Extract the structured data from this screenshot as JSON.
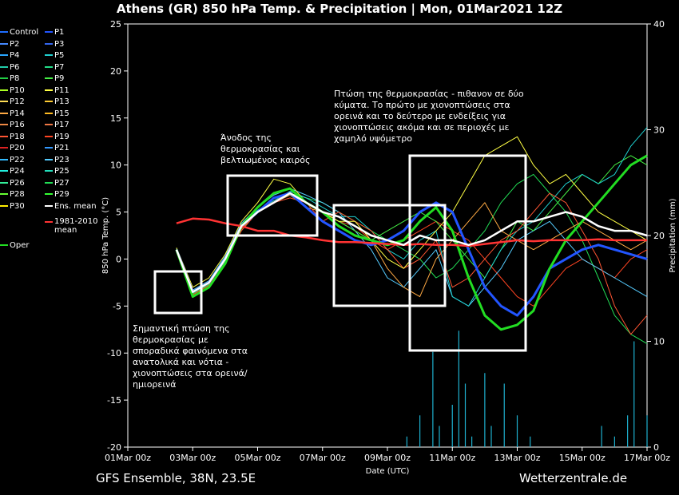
{
  "title": "Athens  (GR)  850 hPa Temp. & Precipitation | Mon, 01Mar2021 12Z",
  "footer": {
    "model": "GFS Ensemble, 38N, 23.5E",
    "source": "Wetterzentrale.de"
  },
  "annotations": [
    "Σημαντική πτώση της θερμοκρασίας με σποραδικά φαινόμενα στα ανατολικά και νότια - χιονοπτώσεις στα ορεινά/ημιορεινά",
    "Άνοδος της θερμοκρασίας και βελτιωμένος καιρός",
    "Πτώση της θερμοκρασίας - πιθανον σε δύο κύματα. Το πρώτο με χιονοπτώσεις στα ορεινά και το δεύτερο με ενδείξεις για χιονοπτώσεις ακόμα και σε περιοχές με χαμηλό υψόμετρο"
  ],
  "legend": [
    {
      "label": "Control",
      "color": "#1e6eff"
    },
    {
      "label": "P1",
      "color": "#2255ff"
    },
    {
      "label": "P2",
      "color": "#4488ff"
    },
    {
      "label": "P3",
      "color": "#3366ee"
    },
    {
      "label": "P4",
      "color": "#2aa6ff"
    },
    {
      "label": "P5",
      "color": "#1fd0d0"
    },
    {
      "label": "P6",
      "color": "#22ccaa"
    },
    {
      "label": "P7",
      "color": "#22dd88"
    },
    {
      "label": "P8",
      "color": "#22cc44"
    },
    {
      "label": "P9",
      "color": "#44ee44"
    },
    {
      "label": "P10",
      "color": "#aaff22"
    },
    {
      "label": "P11",
      "color": "#ffff44"
    },
    {
      "label": "P12",
      "color": "#ffdd55"
    },
    {
      "label": "P13",
      "color": "#ffcc33"
    },
    {
      "label": "P14",
      "color": "#ffaa44"
    },
    {
      "label": "P15",
      "color": "#ffbb22"
    },
    {
      "label": "P16",
      "color": "#ee8844"
    },
    {
      "label": "P17",
      "color": "#ee7744"
    },
    {
      "label": "P18",
      "color": "#ff5533"
    },
    {
      "label": "P19",
      "color": "#ff4422"
    },
    {
      "label": "P20",
      "color": "#dd2222"
    },
    {
      "label": "P21",
      "color": "#3399ff"
    },
    {
      "label": "P22",
      "color": "#33bbff"
    },
    {
      "label": "P23",
      "color": "#55ccff"
    },
    {
      "label": "P24",
      "color": "#22eedd"
    },
    {
      "label": "P25",
      "color": "#22ddbb"
    },
    {
      "label": "P26",
      "color": "#33ee99"
    },
    {
      "label": "P27",
      "color": "#22dd55"
    },
    {
      "label": "P28",
      "color": "#66ff33"
    },
    {
      "label": "P29",
      "color": "#33ff33"
    },
    {
      "label": "P30",
      "color": "#ffee00"
    },
    {
      "label": "Ens. mean",
      "color": "#ffffff"
    },
    {
      "label": "1981-2010 mean",
      "color": "#ff3333"
    },
    {
      "label": "Oper",
      "color": "#22dd22"
    }
  ],
  "chart_data": {
    "type": "line",
    "xlabel": "Date (UTC)",
    "ylabel": "850 hPa Temp. (°C)",
    "y2label": "Precipitation (mm)",
    "ylim": [
      -20,
      25
    ],
    "y2lim": [
      0,
      40
    ],
    "yticks": [
      -20,
      -15,
      -10,
      -5,
      0,
      5,
      10,
      15,
      20,
      25
    ],
    "y2ticks": [
      0,
      10,
      20,
      30,
      40
    ],
    "xlim": [
      0,
      16
    ],
    "xticks": [
      0,
      2,
      4,
      6,
      8,
      10,
      12,
      14,
      16
    ],
    "xticklabels": [
      "01Mar 00z",
      "03Mar 00z",
      "05Mar 00z",
      "07Mar 00z",
      "09Mar 00z",
      "11Mar 00z",
      "13Mar 00z",
      "15Mar 00z",
      "17Mar 00z"
    ],
    "grid": false,
    "series": [
      {
        "name": "Ens. mean",
        "color": "#ffffff",
        "x": [
          1.5,
          2,
          2.5,
          3,
          3.5,
          4,
          4.5,
          5,
          5.5,
          6,
          6.5,
          7,
          7.5,
          8,
          8.5,
          9,
          9.5,
          10,
          10.5,
          11,
          11.5,
          12,
          12.5,
          13,
          13.5,
          14,
          14.5,
          15,
          15.5,
          16
        ],
        "y": [
          1.0,
          -3.5,
          -2.5,
          0,
          3.5,
          5,
          6,
          7,
          6,
          5,
          4.5,
          3.5,
          2.5,
          2,
          1.5,
          2.5,
          2,
          2,
          1.5,
          2,
          3,
          4,
          4,
          4.5,
          5,
          4.5,
          3.5,
          3,
          3,
          2.5
        ]
      },
      {
        "name": "1981-2010 mean",
        "color": "#ff3333",
        "x": [
          1.5,
          2,
          2.5,
          3,
          3.5,
          4,
          4.5,
          5,
          5.5,
          6,
          6.5,
          7,
          7.5,
          8,
          8.5,
          9,
          9.5,
          10,
          10.5,
          11,
          11.5,
          12,
          12.5,
          13,
          13.5,
          14,
          14.5,
          15,
          15.5,
          16
        ],
        "y": [
          3.8,
          4.3,
          4.2,
          3.8,
          3.5,
          3.0,
          3.0,
          2.5,
          2.3,
          2.0,
          1.8,
          1.8,
          1.7,
          1.6,
          1.5,
          1.6,
          1.5,
          1.5,
          1.4,
          1.6,
          1.8,
          2.0,
          1.9,
          2.0,
          2.0,
          2.0,
          2.1,
          2.0,
          2.0,
          2.0
        ]
      },
      {
        "name": "Oper",
        "color": "#22dd22",
        "x": [
          1.5,
          2,
          2.5,
          3,
          3.5,
          4,
          4.5,
          5,
          5.5,
          6,
          6.5,
          7,
          7.5,
          8,
          8.5,
          9,
          9.5,
          10,
          10.5,
          11,
          11.5,
          12,
          12.5,
          13,
          13.5,
          14,
          14.5,
          15,
          15.5,
          16
        ],
        "y": [
          1.0,
          -4.0,
          -3.0,
          -0.5,
          3.5,
          5.5,
          7,
          7.5,
          6,
          5,
          3.5,
          2.5,
          2,
          1.5,
          2,
          4,
          5.5,
          3,
          -2,
          -6,
          -7.5,
          -7,
          -5.5,
          -1,
          2,
          4,
          6,
          8,
          10,
          11
        ]
      },
      {
        "name": "P1",
        "color": "#2255ff",
        "x": [
          1.5,
          2,
          2.5,
          3,
          3.5,
          4,
          4.5,
          5,
          5.5,
          6,
          6.5,
          7,
          7.5,
          8,
          8.5,
          9,
          9.5,
          10,
          10.5,
          11,
          11.5,
          12,
          12.5,
          13,
          13.5,
          14,
          14.5,
          15,
          15.5,
          16
        ],
        "y": [
          1.0,
          -3.5,
          -2.5,
          0,
          3.5,
          5,
          6.5,
          7,
          5.5,
          4,
          3,
          2,
          1.5,
          2,
          3,
          5,
          6,
          5,
          1,
          -3,
          -5,
          -6,
          -4,
          -1,
          0,
          1,
          1.5,
          1,
          0.5,
          0
        ]
      },
      {
        "name": "P11",
        "color": "#ffff44",
        "x": [
          1.5,
          2,
          2.5,
          3,
          3.5,
          4,
          4.5,
          5,
          5.5,
          6,
          6.5,
          7,
          7.5,
          8,
          8.5,
          9,
          9.5,
          10,
          10.5,
          11,
          11.5,
          12,
          12.5,
          13,
          13.5,
          14,
          14.5,
          15,
          15.5,
          16
        ],
        "y": [
          1.2,
          -3,
          -2,
          0.5,
          4,
          6,
          8.5,
          8,
          6,
          5,
          4,
          4,
          2,
          0,
          -1,
          1,
          3,
          5,
          8,
          11,
          12,
          13,
          10,
          8,
          9,
          7,
          5,
          4,
          3,
          2
        ]
      },
      {
        "name": "P18",
        "color": "#ff5533",
        "x": [
          1.5,
          2,
          2.5,
          3,
          3.5,
          4,
          4.5,
          5,
          5.5,
          6,
          6.5,
          7,
          7.5,
          8,
          8.5,
          9,
          9.5,
          10,
          10.5,
          11,
          11.5,
          12,
          12.5,
          13,
          13.5,
          14,
          14.5,
          15,
          15.5,
          16
        ],
        "y": [
          1.0,
          -3.8,
          -2.8,
          0,
          3,
          5,
          6,
          6.5,
          6,
          4,
          5,
          4,
          3,
          1,
          -1,
          0,
          2,
          -3,
          -2,
          0,
          2,
          3,
          5,
          7,
          6,
          3,
          0,
          -5,
          -8,
          -6
        ]
      },
      {
        "name": "P5",
        "color": "#1fd0d0",
        "x": [
          1.5,
          2,
          2.5,
          3,
          3.5,
          4,
          4.5,
          5,
          5.5,
          6,
          6.5,
          7,
          7.5,
          8,
          8.5,
          9,
          9.5,
          10,
          10.5,
          11,
          11.5,
          12,
          12.5,
          13,
          13.5,
          14,
          14.5,
          15,
          15.5,
          16
        ],
        "y": [
          1.1,
          -3.6,
          -2.6,
          0.2,
          3.6,
          5.2,
          6.2,
          7.2,
          6.5,
          5.5,
          4.5,
          4.5,
          3,
          1,
          0,
          2,
          3,
          -4,
          -5,
          -2,
          1,
          3,
          4,
          6,
          8,
          9,
          8,
          9,
          12,
          14
        ]
      },
      {
        "name": "P9",
        "color": "#44ee44",
        "x": [
          1.5,
          2,
          2.5,
          3,
          3.5,
          4,
          4.5,
          5,
          5.5,
          6,
          6.5,
          7,
          7.5,
          8,
          8.5,
          9,
          9.5,
          10,
          10.5,
          11,
          11.5,
          12,
          12.5,
          13,
          13.5,
          14,
          14.5,
          15,
          15.5,
          16
        ],
        "y": [
          0.9,
          -3.7,
          -2.7,
          -0.2,
          3.4,
          5,
          6.5,
          7,
          6,
          5,
          4,
          3,
          2,
          3,
          4,
          5,
          4,
          2,
          0,
          -2,
          1,
          4,
          3,
          5,
          7,
          9,
          8,
          10,
          11,
          10
        ]
      },
      {
        "name": "P14",
        "color": "#ffaa44",
        "x": [
          1.5,
          2,
          2.5,
          3,
          3.5,
          4,
          4.5,
          5,
          5.5,
          6,
          6.5,
          7,
          7.5,
          8,
          8.5,
          9,
          9.5,
          10,
          10.5,
          11,
          11.5,
          12,
          12.5,
          13,
          13.5,
          14,
          14.5,
          15,
          15.5,
          16
        ],
        "y": [
          1.0,
          -3.9,
          -3.0,
          -0.3,
          3.2,
          5,
          6,
          6.8,
          5.5,
          5,
          4,
          3,
          2,
          -1,
          -3,
          -4,
          0,
          2,
          4,
          6,
          3,
          2,
          1,
          2,
          3,
          4,
          3,
          2,
          1,
          2
        ]
      },
      {
        "name": "P23",
        "color": "#55ccff",
        "x": [
          1.5,
          2,
          2.5,
          3,
          3.5,
          4,
          4.5,
          5,
          5.5,
          6,
          6.5,
          7,
          7.5,
          8,
          8.5,
          9,
          9.5,
          10,
          10.5,
          11,
          11.5,
          12,
          12.5,
          13,
          13.5,
          14,
          14.5,
          15,
          15.5,
          16
        ],
        "y": [
          1.0,
          -3.3,
          -2.3,
          0.3,
          3.8,
          5.5,
          6.8,
          7.5,
          6.8,
          6,
          5,
          3,
          1,
          -2,
          -3,
          -1,
          1,
          -4,
          -5,
          -3,
          -1,
          2,
          3,
          4,
          2,
          0,
          -1,
          -2,
          -3,
          -4
        ]
      },
      {
        "name": "P27",
        "color": "#22dd55",
        "x": [
          1.5,
          2,
          2.5,
          3,
          3.5,
          4,
          4.5,
          5,
          5.5,
          6,
          6.5,
          7,
          7.5,
          8,
          8.5,
          9,
          9.5,
          10,
          10.5,
          11,
          11.5,
          12,
          12.5,
          13,
          13.5,
          14,
          14.5,
          15,
          15.5,
          16
        ],
        "y": [
          1.0,
          -3.5,
          -2.5,
          0,
          3.5,
          5,
          6,
          7,
          6.5,
          6,
          5,
          4,
          3,
          2,
          1,
          0,
          -2,
          -1,
          1,
          3,
          6,
          8,
          9,
          7,
          5,
          2,
          -2,
          -6,
          -8,
          -9
        ]
      },
      {
        "name": "P19",
        "color": "#ff4422",
        "x": [
          1.5,
          2,
          2.5,
          3,
          3.5,
          4,
          4.5,
          5,
          5.5,
          6,
          6.5,
          7,
          7.5,
          8,
          8.5,
          9,
          9.5,
          10,
          10.5,
          11,
          11.5,
          12,
          12.5,
          13,
          13.5,
          14,
          14.5,
          15,
          15.5,
          16
        ],
        "y": [
          1.0,
          -3.6,
          -2.6,
          0,
          3.4,
          5,
          6.2,
          7,
          6,
          5,
          4,
          3.5,
          2,
          1,
          2,
          3,
          4,
          3,
          2,
          0,
          -2,
          -4,
          -5,
          -3,
          -1,
          0,
          -1,
          -2,
          0,
          1
        ]
      }
    ],
    "precipitation": {
      "name": "Precipitation (mm)",
      "x": [
        8.6,
        9,
        9.4,
        9.6,
        10,
        10.2,
        10.4,
        10.6,
        11.0,
        11.2,
        11.6,
        12.0,
        12.4,
        14.6,
        15,
        15.4,
        15.6,
        16
      ],
      "y": [
        1,
        3,
        9,
        2,
        4,
        11,
        6,
        1,
        7,
        2,
        6,
        3,
        1,
        2,
        1,
        3,
        10,
        3
      ]
    }
  }
}
